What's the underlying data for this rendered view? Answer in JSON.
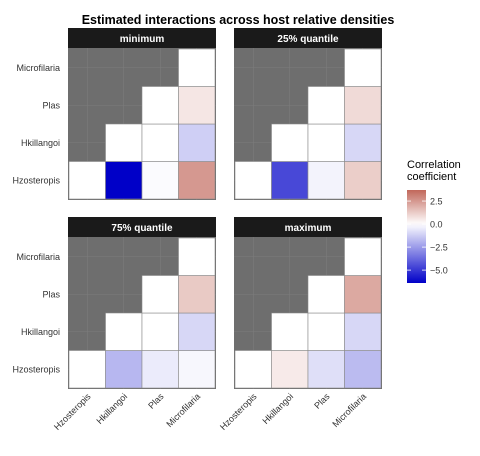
{
  "chart_data": {
    "type": "heatmap",
    "title": "Estimated interactions across host relative densities",
    "xlabel": "",
    "ylabel": "",
    "x_categories": [
      "Hzosteropis",
      "Hkillangoi",
      "Plas",
      "Microfilaria"
    ],
    "y_categories": [
      "Hzosteropis",
      "Hkillangoi",
      "Plas",
      "Microfilaria"
    ],
    "panels": [
      {
        "name": "minimum",
        "cells": [
          {
            "x": "Hzosteropis",
            "y": "Hzosteropis",
            "value": 0
          },
          {
            "x": "Hkillangoi",
            "y": "Hzosteropis",
            "value": -6.4
          },
          {
            "x": "Plas",
            "y": "Hzosteropis",
            "value": -0.1
          },
          {
            "x": "Microfilaria",
            "y": "Hzosteropis",
            "value": 2.5
          },
          {
            "x": "Hkillangoi",
            "y": "Hkillangoi",
            "value": 0
          },
          {
            "x": "Plas",
            "y": "Hkillangoi",
            "value": 0
          },
          {
            "x": "Microfilaria",
            "y": "Hkillangoi",
            "value": -1.2
          },
          {
            "x": "Plas",
            "y": "Plas",
            "value": 0
          },
          {
            "x": "Microfilaria",
            "y": "Plas",
            "value": 0.6
          },
          {
            "x": "Microfilaria",
            "y": "Microfilaria",
            "value": 0
          }
        ]
      },
      {
        "name": "25% quantile",
        "cells": [
          {
            "x": "Hzosteropis",
            "y": "Hzosteropis",
            "value": 0
          },
          {
            "x": "Hkillangoi",
            "y": "Hzosteropis",
            "value": -4.6
          },
          {
            "x": "Plas",
            "y": "Hzosteropis",
            "value": -0.3
          },
          {
            "x": "Microfilaria",
            "y": "Hzosteropis",
            "value": 1.2
          },
          {
            "x": "Hkillangoi",
            "y": "Hkillangoi",
            "value": 0
          },
          {
            "x": "Plas",
            "y": "Hkillangoi",
            "value": 0
          },
          {
            "x": "Microfilaria",
            "y": "Hkillangoi",
            "value": -1.0
          },
          {
            "x": "Plas",
            "y": "Plas",
            "value": 0
          },
          {
            "x": "Microfilaria",
            "y": "Plas",
            "value": 0.9
          },
          {
            "x": "Microfilaria",
            "y": "Microfilaria",
            "value": 0
          }
        ]
      },
      {
        "name": "75% quantile",
        "cells": [
          {
            "x": "Hzosteropis",
            "y": "Hzosteropis",
            "value": 0
          },
          {
            "x": "Hkillangoi",
            "y": "Hzosteropis",
            "value": -1.8
          },
          {
            "x": "Plas",
            "y": "Hzosteropis",
            "value": -0.5
          },
          {
            "x": "Microfilaria",
            "y": "Hzosteropis",
            "value": -0.2
          },
          {
            "x": "Hkillangoi",
            "y": "Hkillangoi",
            "value": 0
          },
          {
            "x": "Plas",
            "y": "Hkillangoi",
            "value": 0
          },
          {
            "x": "Microfilaria",
            "y": "Hkillangoi",
            "value": -1.0
          },
          {
            "x": "Plas",
            "y": "Plas",
            "value": 0
          },
          {
            "x": "Microfilaria",
            "y": "Plas",
            "value": 1.3
          },
          {
            "x": "Microfilaria",
            "y": "Microfilaria",
            "value": 0
          }
        ]
      },
      {
        "name": "maximum",
        "cells": [
          {
            "x": "Hzosteropis",
            "y": "Hzosteropis",
            "value": 0
          },
          {
            "x": "Hkillangoi",
            "y": "Hzosteropis",
            "value": 0.5
          },
          {
            "x": "Plas",
            "y": "Hzosteropis",
            "value": -0.8
          },
          {
            "x": "Microfilaria",
            "y": "Hzosteropis",
            "value": -1.7
          },
          {
            "x": "Hkillangoi",
            "y": "Hkillangoi",
            "value": 0
          },
          {
            "x": "Plas",
            "y": "Hkillangoi",
            "value": 0
          },
          {
            "x": "Microfilaria",
            "y": "Hkillangoi",
            "value": -1.0
          },
          {
            "x": "Plas",
            "y": "Plas",
            "value": 0
          },
          {
            "x": "Microfilaria",
            "y": "Plas",
            "value": 2.1
          },
          {
            "x": "Microfilaria",
            "y": "Microfilaria",
            "value": 0
          }
        ]
      }
    ],
    "legend": {
      "title": "Correlation\ncoefficient",
      "ticks": [
        2.5,
        0.0,
        -2.5,
        -5.0
      ],
      "tick_labels": [
        "2.5",
        "0.0",
        "−2.5",
        "−5.0"
      ],
      "range": [
        -6.4,
        3.7
      ],
      "low_color": "#0000c8",
      "mid_color": "#ffffff",
      "high_color": "#c1675a",
      "placement": "right"
    },
    "colors": {
      "panel_background": "#6e6e6e",
      "strip_background": "#1a1a1a",
      "strip_text": "#ffffff"
    }
  }
}
